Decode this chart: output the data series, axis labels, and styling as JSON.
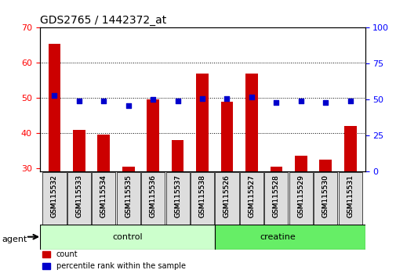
{
  "title": "GDS2765 / 1442372_at",
  "samples": [
    "GSM115532",
    "GSM115533",
    "GSM115534",
    "GSM115535",
    "GSM115536",
    "GSM115537",
    "GSM115538",
    "GSM115526",
    "GSM115527",
    "GSM115528",
    "GSM115529",
    "GSM115530",
    "GSM115531"
  ],
  "counts": [
    65.5,
    41.0,
    39.5,
    30.5,
    49.5,
    38.0,
    57.0,
    49.0,
    57.0,
    30.5,
    33.5,
    32.5,
    42.0
  ],
  "percentile": [
    53,
    49,
    49,
    46,
    50,
    49,
    51,
    51,
    52,
    48,
    49,
    48,
    49
  ],
  "ylim": [
    29,
    70
  ],
  "y2lim": [
    0,
    100
  ],
  "yticks": [
    30,
    40,
    50,
    60,
    70
  ],
  "y2ticks": [
    0,
    25,
    50,
    75,
    100
  ],
  "control_label": "control",
  "creatine_label": "creatine",
  "agent_label": "agent",
  "legend_count": "count",
  "legend_percentile": "percentile rank within the sample",
  "bar_color": "#cc0000",
  "dot_color": "#0000cc",
  "control_color": "#ccffcc",
  "creatine_color": "#66ee66",
  "bar_bottom": 29,
  "bar_width": 0.5
}
